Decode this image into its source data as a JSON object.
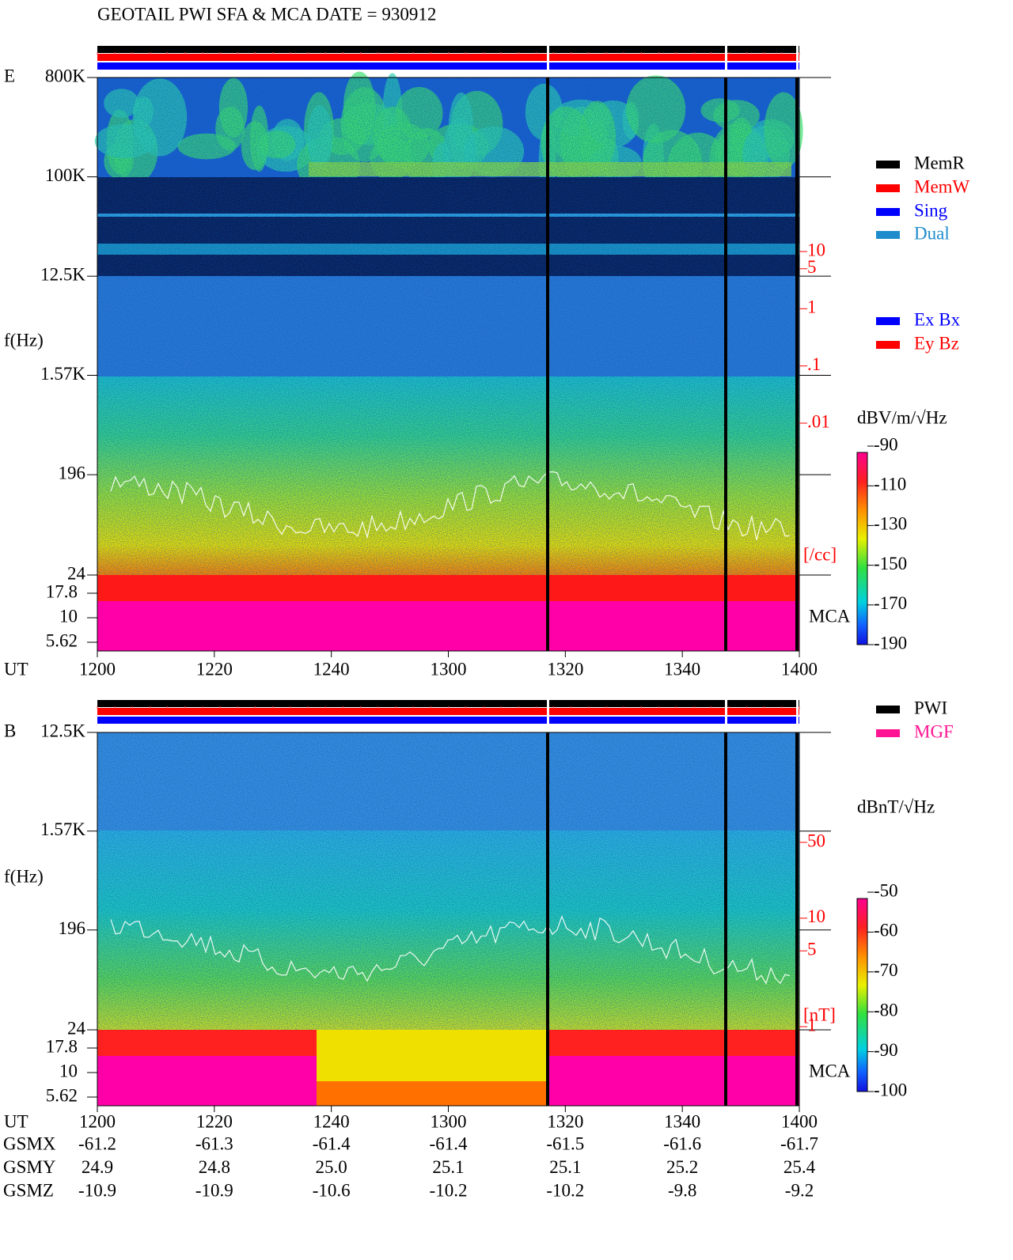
{
  "title": "GEOTAIL  PWI SFA & MCA   DATE = 930912",
  "panels": [
    {
      "label": "E",
      "ylabel": "f(Hz)",
      "xlabel": "UT",
      "sfa_ylim": [
        24,
        800000
      ],
      "sfa_yticks": [
        {
          "value": 800000,
          "label": "800K"
        },
        {
          "value": 100000,
          "label": "100K"
        },
        {
          "value": 12500,
          "label": "12.5K"
        },
        {
          "value": 1570,
          "label": "1.57K"
        },
        196,
        24
      ],
      "mca_ylim": [
        5.62,
        17.8
      ],
      "mca_yticks": [
        17.8,
        10,
        5.62
      ],
      "time_labels": [
        "1200",
        "1220",
        "1240",
        "1300",
        "1320",
        "1340",
        "1400"
      ],
      "legend": [
        {
          "name": "MemR",
          "color": "#000000"
        },
        {
          "name": "MemW",
          "color": "#ff0000"
        },
        {
          "name": "Sing",
          "color": "#0000ff"
        },
        {
          "name": "Dual",
          "color": "#1e8ccc"
        }
      ],
      "legend2": [
        {
          "name": "Ex Bx",
          "color": "#0000ff"
        },
        {
          "name": "Ey Bz",
          "color": "#ff0000"
        }
      ],
      "cbar_title": "dBV/m/√Hz",
      "clim": [
        -190,
        -90
      ],
      "cticks": [
        -90,
        -110,
        -130,
        -150,
        -170,
        -190
      ],
      "density_lim": [
        0.01,
        10
      ],
      "density_ticks": [
        10,
        5,
        1,
        {
          "value": 0.1,
          "label": ".1"
        },
        {
          "value": 0.01,
          "label": ".01"
        }
      ],
      "density_unit": "[/cc]",
      "mca_label": "MCA"
    },
    {
      "label": "B",
      "ylabel": "f(Hz)",
      "xlabel": "UT",
      "sfa_ylim": [
        24,
        12500
      ],
      "sfa_yticks": [
        {
          "value": 12500,
          "label": "12.5K"
        },
        {
          "value": 1570,
          "label": "1.57K"
        },
        196,
        24
      ],
      "mca_ylim": [
        5.62,
        17.8
      ],
      "mca_yticks": [
        17.8,
        10,
        5.62
      ],
      "time_labels": [
        "1200",
        "1220",
        "1240",
        "1300",
        "1320",
        "1340",
        "1400"
      ],
      "legend": [
        {
          "name": "PWI",
          "color": "#000000"
        },
        {
          "name": "MGF",
          "color": "#ff1493"
        }
      ],
      "cbar_title": "dBnT/√Hz",
      "clim": [
        -100,
        -50
      ],
      "cticks": [
        -50,
        -60,
        -70,
        -80,
        -90,
        -100
      ],
      "density_lim": [
        1,
        50
      ],
      "density_ticks": [
        50,
        10,
        5,
        1
      ],
      "density_unit": "[nT]",
      "mca_label": "MCA"
    }
  ],
  "orbit": {
    "rows": [
      {
        "name": "GSMX",
        "values": [
          "-61.2",
          "-61.3",
          "-61.4",
          "-61.4",
          "-61.5",
          "-61.6",
          "-61.7"
        ]
      },
      {
        "name": "GSMY",
        "values": [
          "24.9",
          "24.8",
          "25.0",
          "25.1",
          "25.1",
          "25.2",
          "25.4"
        ]
      },
      {
        "name": "GSMZ",
        "values": [
          "-10.9",
          "-10.9",
          "-10.6",
          "-10.2",
          "-10.2",
          "-9.8",
          "-9.2"
        ]
      }
    ]
  }
}
